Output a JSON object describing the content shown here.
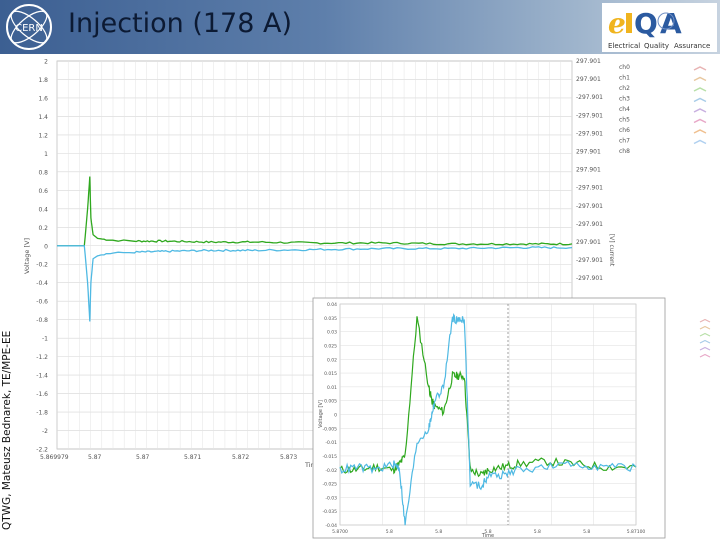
{
  "header": {
    "title": "Injection (178 A)",
    "side_label": "QTWG, Mateusz Bednarek, TE/MPE-EE",
    "elqa_logo_text": "eLQA",
    "elqa_logo_sub": [
      "Electrical",
      "Quality",
      "Assurance"
    ],
    "cern_logo_text": "CERN"
  },
  "colors": {
    "banner_dark": "#3c5f92",
    "trace_green": "#2fa81e",
    "trace_cyan": "#4fb9e3",
    "grid": "#d6d6d6"
  },
  "chart_data": [
    {
      "type": "line",
      "ylabel": "Voltage [V]",
      "xlabel": "Time",
      "ylim": [
        -2.2,
        2.0
      ],
      "xlim": [
        5.86979,
        5.8745
      ],
      "y_ticks": [
        2,
        1.8,
        1.6,
        1.4,
        1.2,
        1,
        0.8,
        0.6,
        0.4,
        0.2,
        0,
        -0.2,
        -0.4,
        -0.6,
        -0.8,
        -1,
        -1.2,
        -1.4,
        -1.6,
        -1.8,
        -2,
        -2.2
      ],
      "x_tick_labels": [
        "5.869979",
        "5.87",
        "5.87",
        "5.871",
        "5.872",
        "5.873"
      ],
      "right_tick_labels": [
        "297.901",
        "297.901",
        "-297.901",
        "-297.901",
        "-297.901",
        "297.901",
        "297.901",
        "-297.901",
        "-297.901",
        "-297.901",
        "297.901",
        "-297.901",
        "-297.901"
      ],
      "right_axis_label": "[V] current",
      "legend_items": [
        "ch0",
        "ch1",
        "ch2",
        "ch3",
        "ch4",
        "ch5",
        "ch6",
        "ch7",
        "ch8"
      ],
      "grid": true,
      "series": [
        {
          "color": "green",
          "x": [
            5.86979,
            5.87004,
            5.87007,
            5.87009,
            5.8701,
            5.87012,
            5.87016,
            5.87022,
            5.8703,
            5.8705,
            5.8708,
            5.8712,
            5.8716,
            5.8722,
            5.8728,
            5.8734,
            5.874,
            5.8745
          ],
          "y": [
            0.0,
            0.0,
            0.4,
            0.75,
            0.3,
            0.12,
            0.08,
            0.07,
            0.06,
            0.05,
            0.05,
            0.04,
            0.04,
            0.03,
            0.03,
            0.02,
            0.02,
            0.02
          ]
        },
        {
          "color": "cyan",
          "x": [
            5.86979,
            5.87004,
            5.87007,
            5.87009,
            5.8701,
            5.87012,
            5.87016,
            5.87022,
            5.8703,
            5.8705,
            5.8708,
            5.8712,
            5.8716,
            5.8722,
            5.8728,
            5.8734,
            5.874,
            5.8745
          ],
          "y": [
            0.0,
            0.0,
            -0.4,
            -0.82,
            -0.4,
            -0.14,
            -0.11,
            -0.09,
            -0.08,
            -0.07,
            -0.06,
            -0.05,
            -0.05,
            -0.04,
            -0.03,
            -0.03,
            -0.02,
            -0.02
          ]
        }
      ]
    },
    {
      "type": "line",
      "ylabel": "Voltage [V]",
      "xlabel": "Time",
      "ylim": [
        -0.04,
        0.04
      ],
      "y_tick_labels": [
        "0.04",
        "0.035",
        "0.03",
        "0.025",
        "0.02",
        "0.015",
        "0.01",
        "0.005",
        "0",
        "-0.005",
        "-0.01",
        "-0.015",
        "-0.02",
        "-0.025",
        "-0.03",
        "-0.035",
        "-0.04"
      ],
      "x_tick_labels": [
        "5.8700",
        "5.8",
        "5.8",
        "5.8",
        "5.8",
        "5.8",
        "5.87100"
      ],
      "grid": true,
      "series": [
        {
          "color": "green",
          "x": [
            0,
            0.06,
            0.12,
            0.18,
            0.2,
            0.22,
            0.26,
            0.3,
            0.31,
            0.32,
            0.35,
            0.38,
            0.4,
            0.42,
            0.44,
            0.48,
            0.5,
            0.55,
            0.6,
            0.7,
            0.8,
            0.9,
            1.0
          ],
          "y": [
            -0.02,
            -0.02,
            -0.019,
            -0.02,
            -0.018,
            -0.015,
            0.035,
            0.01,
            0.005,
            0.003,
            0.001,
            0.014,
            0.014,
            0.014,
            -0.02,
            -0.022,
            -0.02,
            -0.019,
            -0.018,
            -0.017,
            -0.018,
            -0.019,
            -0.019
          ]
        },
        {
          "color": "cyan",
          "x": [
            0,
            0.06,
            0.12,
            0.18,
            0.2,
            0.22,
            0.26,
            0.3,
            0.31,
            0.32,
            0.35,
            0.38,
            0.4,
            0.42,
            0.44,
            0.48,
            0.5,
            0.55,
            0.6,
            0.7,
            0.8,
            0.9,
            1.0
          ],
          "y": [
            -0.02,
            -0.019,
            -0.02,
            -0.018,
            -0.019,
            -0.04,
            -0.01,
            -0.005,
            0.0,
            0.005,
            0.01,
            0.035,
            0.034,
            0.035,
            -0.025,
            -0.026,
            -0.022,
            -0.022,
            -0.02,
            -0.019,
            -0.018,
            -0.019,
            -0.019
          ]
        }
      ]
    }
  ]
}
